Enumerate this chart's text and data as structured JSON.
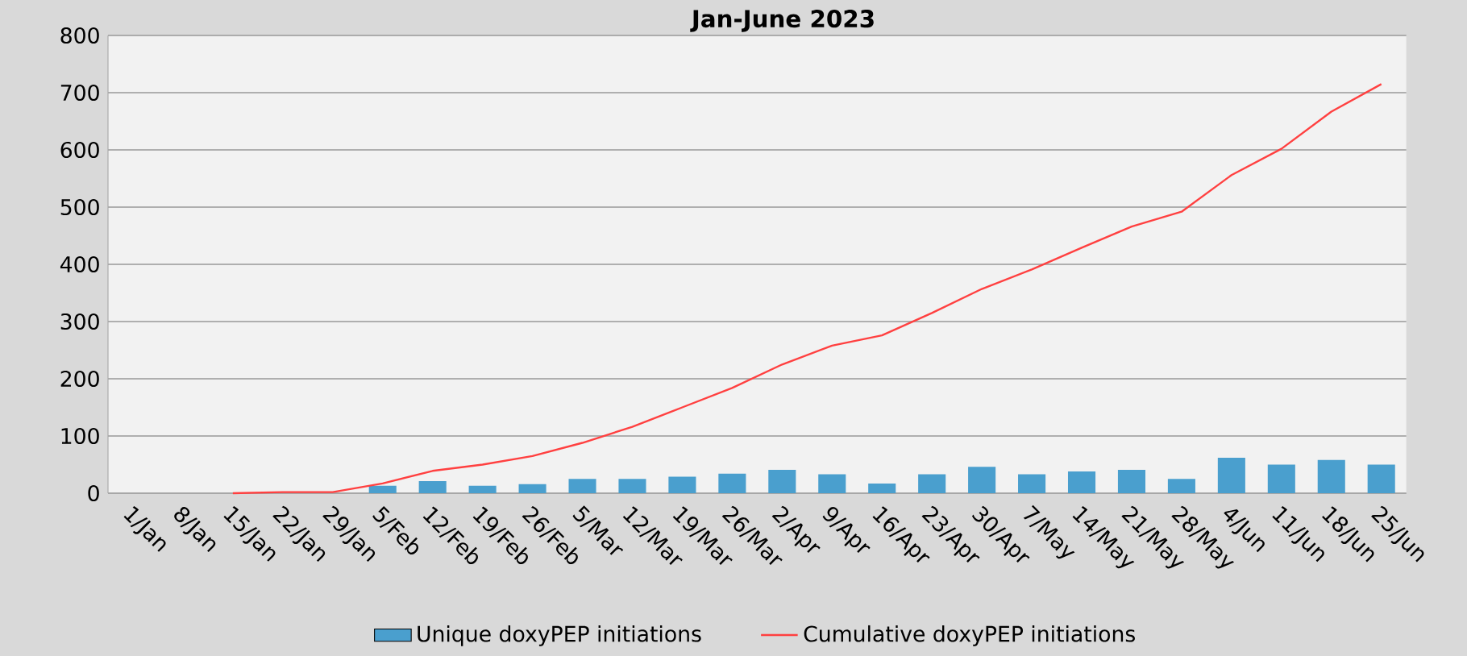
{
  "chart_data": {
    "type": "bar",
    "title": "Jan-June 2023",
    "categories": [
      "1/Jan",
      "8/Jan",
      "15/Jan",
      "22/Jan",
      "29/Jan",
      "5/Feb",
      "12/Feb",
      "19/Feb",
      "26/Feb",
      "5/Mar",
      "12/Mar",
      "19/Mar",
      "26/Mar",
      "2/Apr",
      "9/Apr",
      "16/Apr",
      "23/Apr",
      "30/Apr",
      "7/May",
      "14/May",
      "21/May",
      "28/May",
      "4/Jun",
      "11/Jun",
      "18/Jun",
      "25/Jun"
    ],
    "series": [
      {
        "name": "Unique doxyPEP initiations",
        "color": "#4a9fce",
        "values": [
          null,
          null,
          null,
          null,
          null,
          13,
          21,
          13,
          16,
          25,
          25,
          29,
          34,
          41,
          33,
          17,
          33,
          46,
          33,
          38,
          41,
          25,
          62,
          50,
          58,
          50
        ]
      },
      {
        "name": "Cumulative doxyPEP initiations",
        "type": "line",
        "color": "#ff4040",
        "values": [
          null,
          null,
          0,
          2,
          2,
          17,
          39,
          50,
          65,
          88,
          116,
          150,
          184,
          225,
          258,
          276,
          315,
          357,
          391,
          429,
          466,
          492,
          556,
          602,
          667,
          715
        ]
      }
    ],
    "ylim": [
      0,
      800
    ],
    "yticks": [
      0,
      100,
      200,
      300,
      400,
      500,
      600,
      700,
      800
    ],
    "grid": "y",
    "legend": "bottom"
  }
}
